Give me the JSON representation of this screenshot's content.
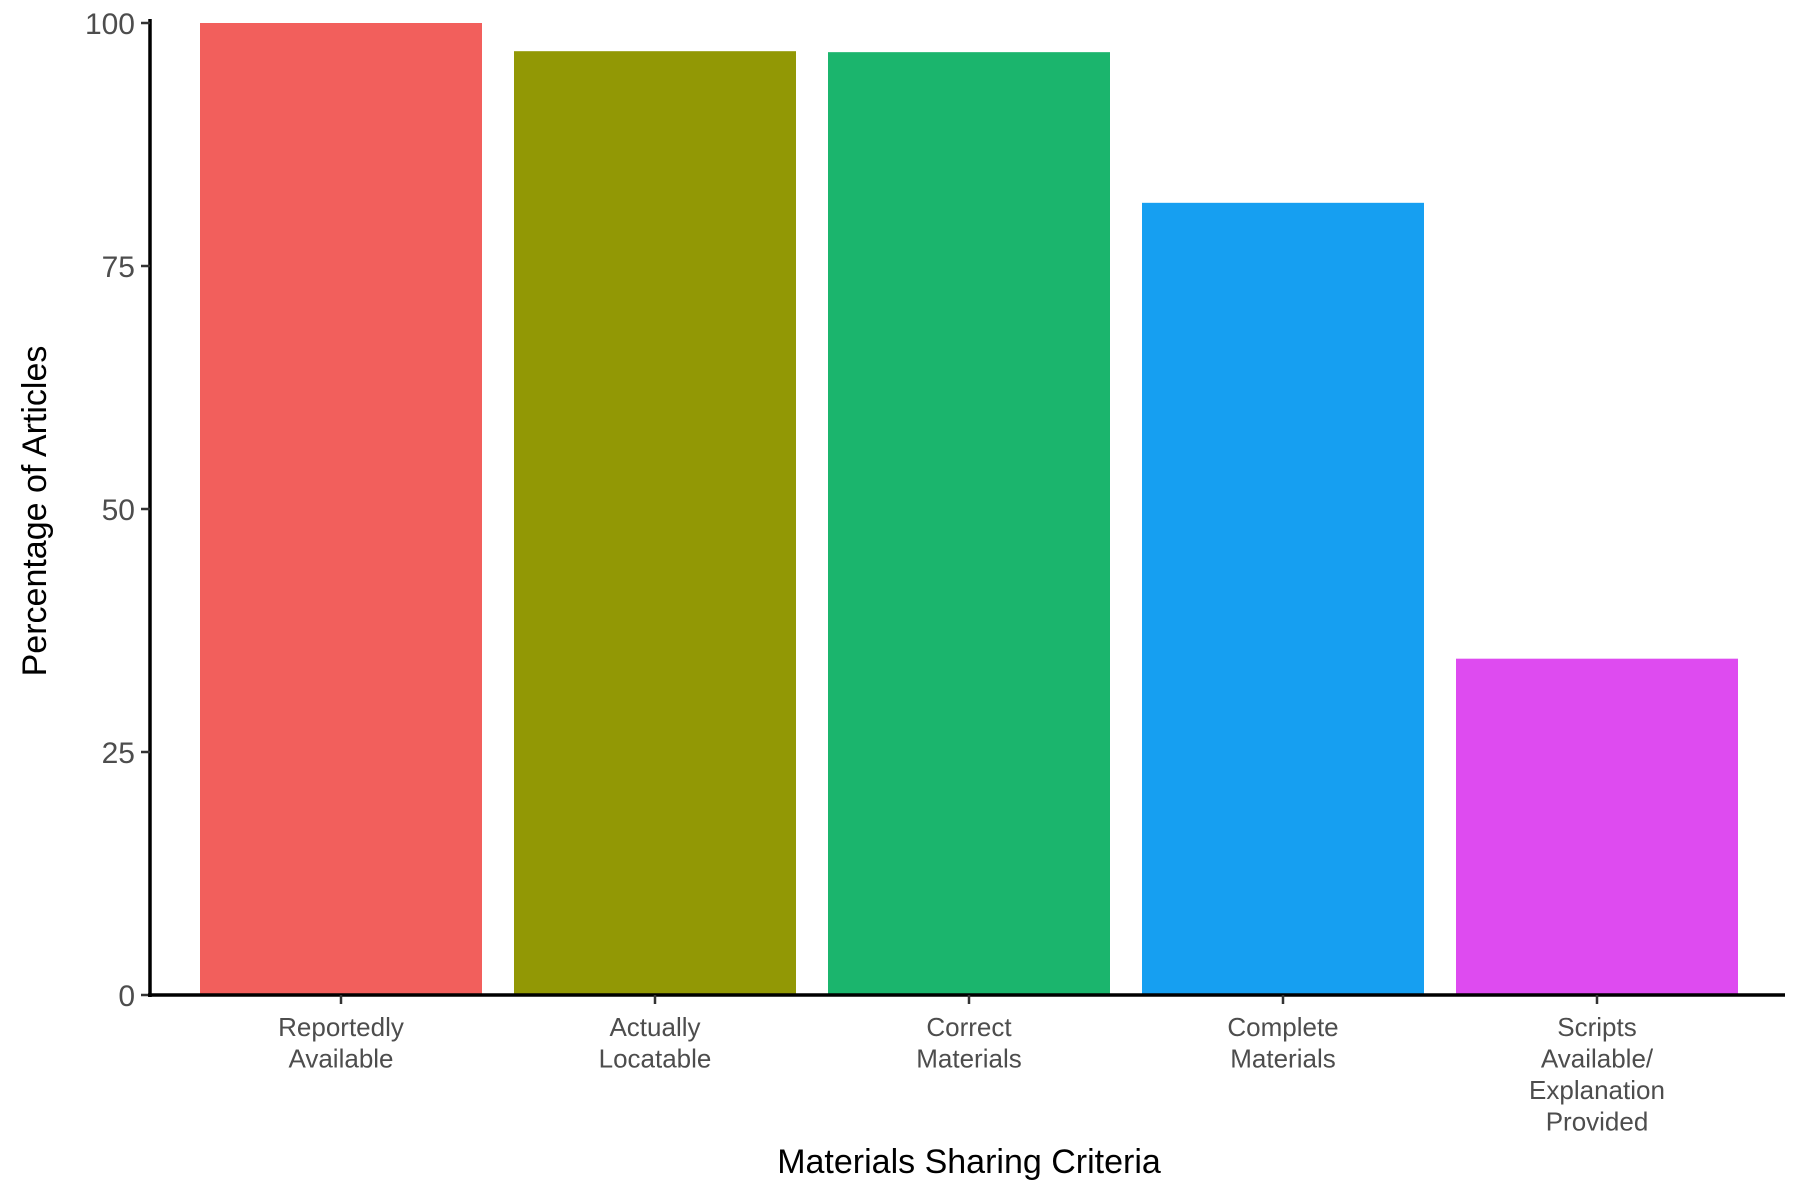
{
  "chart_data": {
    "type": "bar",
    "title": "",
    "xlabel": "Materials Sharing Criteria",
    "ylabel": "Percentage of Articles",
    "ylim": [
      0,
      100
    ],
    "yticks": [
      0,
      25,
      50,
      75,
      100
    ],
    "grid": false,
    "legend": "none",
    "categories": [
      [
        "Reportedly",
        "Available"
      ],
      [
        "Actually",
        "Locatable"
      ],
      [
        "Correct",
        "Materials"
      ],
      [
        "Complete",
        "Materials"
      ],
      [
        "Scripts",
        "Available/",
        "Explanation",
        "Provided"
      ]
    ],
    "values": [
      100,
      97.1,
      97.0,
      81.5,
      34.6
    ],
    "colors": [
      "#F25F5C",
      "#929805",
      "#1BB56D",
      "#169FF1",
      "#DE4BF0"
    ]
  }
}
